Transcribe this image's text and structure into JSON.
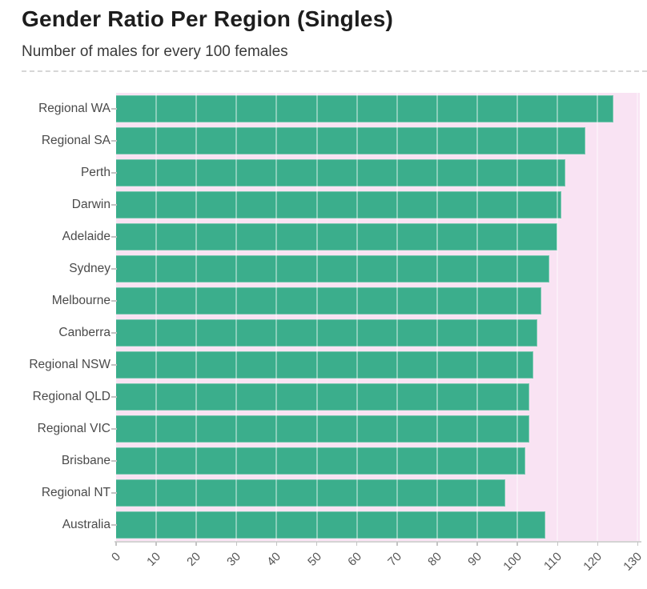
{
  "header": {
    "title": "Gender Ratio Per Region (Singles)",
    "subtitle": "Number of males for every 100 females"
  },
  "chart_data": {
    "type": "bar",
    "orientation": "horizontal",
    "title": "Gender Ratio Per Region (Singles)",
    "subtitle": "Number of males for every 100 females",
    "categories": [
      "Regional WA",
      "Regional SA",
      "Perth",
      "Darwin",
      "Adelaide",
      "Sydney",
      "Melbourne",
      "Canberra",
      "Regional NSW",
      "Regional QLD",
      "Regional VIC",
      "Brisbane",
      "Regional NT",
      "Australia"
    ],
    "values": [
      124,
      117,
      112,
      111,
      110,
      108,
      106,
      105,
      104,
      103,
      103,
      102,
      97,
      107
    ],
    "xlabel": "",
    "ylabel": "",
    "xlim": [
      0,
      130.5
    ],
    "x_ticks": [
      0,
      10,
      20,
      30,
      40,
      50,
      60,
      70,
      80,
      90,
      100,
      110,
      120,
      130
    ],
    "grid": "vertical",
    "legend": "none",
    "colors": {
      "bar": "#3BAE8C",
      "plot_background": "#F9E3F3",
      "gridline": "rgba(255,255,255,0.40)",
      "axis_line": "#d4d4d4",
      "tick_mark": "#c4c4c4",
      "category_label": "#4a4a4a",
      "tick_label": "#565656",
      "title": "#1d1d1d",
      "subtitle": "#3a3a3a"
    }
  }
}
